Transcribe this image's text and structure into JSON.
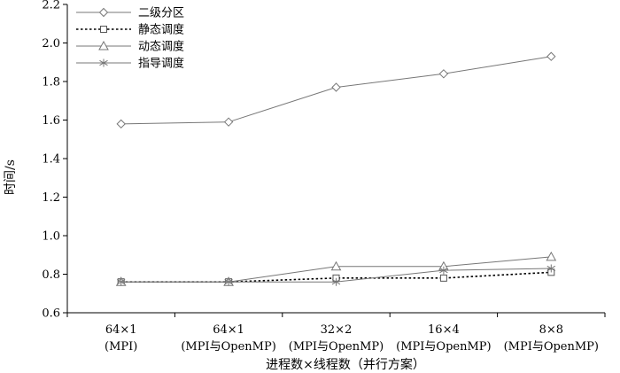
{
  "chart_data": {
    "type": "line",
    "xlabel": "进程数×线程数（并行方案）",
    "ylabel": "时间/s",
    "ylim": [
      0.6,
      2.2
    ],
    "yticks": [
      "0.6",
      "0.8",
      "1.0",
      "1.2",
      "1.4",
      "1.6",
      "1.8",
      "2.0",
      "2.2"
    ],
    "categories": [
      {
        "line1": "64×1",
        "line2": "(MPI)"
      },
      {
        "line1": "64×1",
        "line2": "(MPI与OpenMP)"
      },
      {
        "line1": "32×2",
        "line2": "(MPI与OpenMP)"
      },
      {
        "line1": "16×4",
        "line2": "(MPI与OpenMP)"
      },
      {
        "line1": "8×8",
        "line2": "(MPI与OpenMP)"
      }
    ],
    "grid": false,
    "legend_position": "top-left",
    "series": [
      {
        "name": "二级分区",
        "marker": "diamond",
        "dash": "solid",
        "color": "#777777",
        "values": [
          1.58,
          1.59,
          1.77,
          1.84,
          1.93
        ]
      },
      {
        "name": "静态调度",
        "marker": "square",
        "dash": "dotted",
        "color": "#000000",
        "values": [
          0.76,
          0.76,
          0.78,
          0.78,
          0.81
        ]
      },
      {
        "name": "动态调度",
        "marker": "triangle",
        "dash": "solid",
        "color": "#777777",
        "values": [
          0.76,
          0.76,
          0.84,
          0.84,
          0.89
        ]
      },
      {
        "name": "指导调度",
        "marker": "asterisk",
        "dash": "solid",
        "color": "#777777",
        "values": [
          0.76,
          0.76,
          0.76,
          0.82,
          0.83
        ]
      }
    ]
  }
}
